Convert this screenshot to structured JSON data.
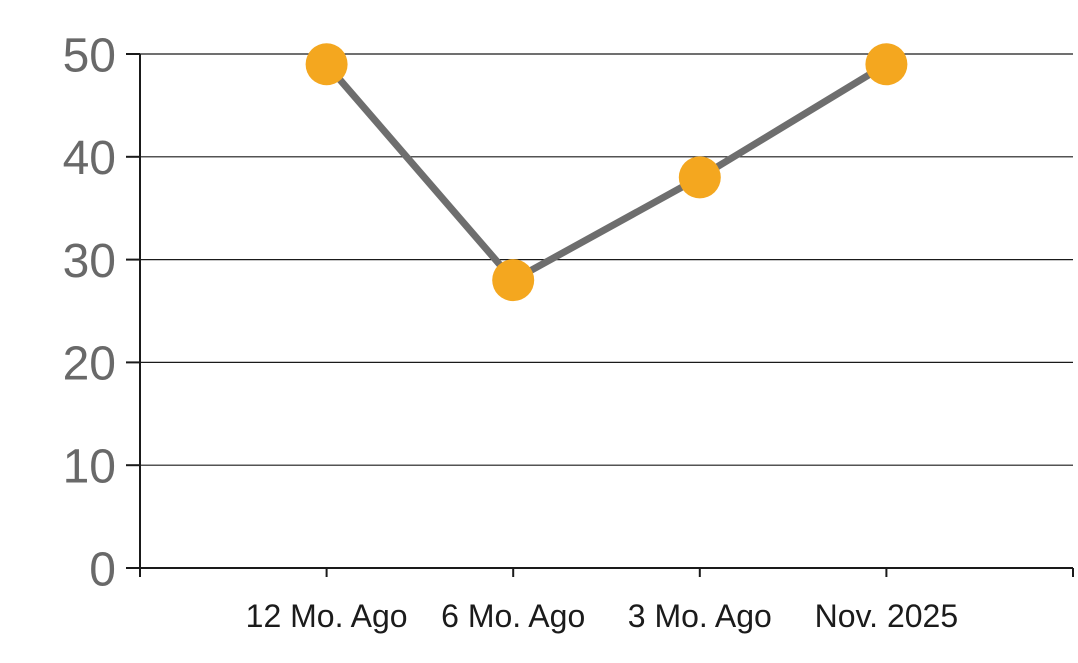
{
  "chart_data": {
    "type": "line",
    "categories": [
      "12 Mo. Ago",
      "6 Mo. Ago",
      "3 Mo. Ago",
      "Nov. 2025"
    ],
    "values": [
      49,
      28,
      38,
      49
    ],
    "title": "",
    "xlabel": "",
    "ylabel": "",
    "ylim": [
      0,
      50
    ],
    "ytick_interval": 10,
    "ytick_labels": [
      "0",
      "10",
      "20",
      "30",
      "40",
      "50"
    ],
    "grid": true,
    "legend": "none",
    "marker_style": "circle",
    "colors": {
      "marker": "#F4A71F",
      "line": "#6E6E6E",
      "grid": "#1A1A1A",
      "axis": "#1A1A1A",
      "ytick_label": "#696969",
      "xtick_label": "#1B1B1B",
      "background": "#FFFFFF"
    }
  }
}
